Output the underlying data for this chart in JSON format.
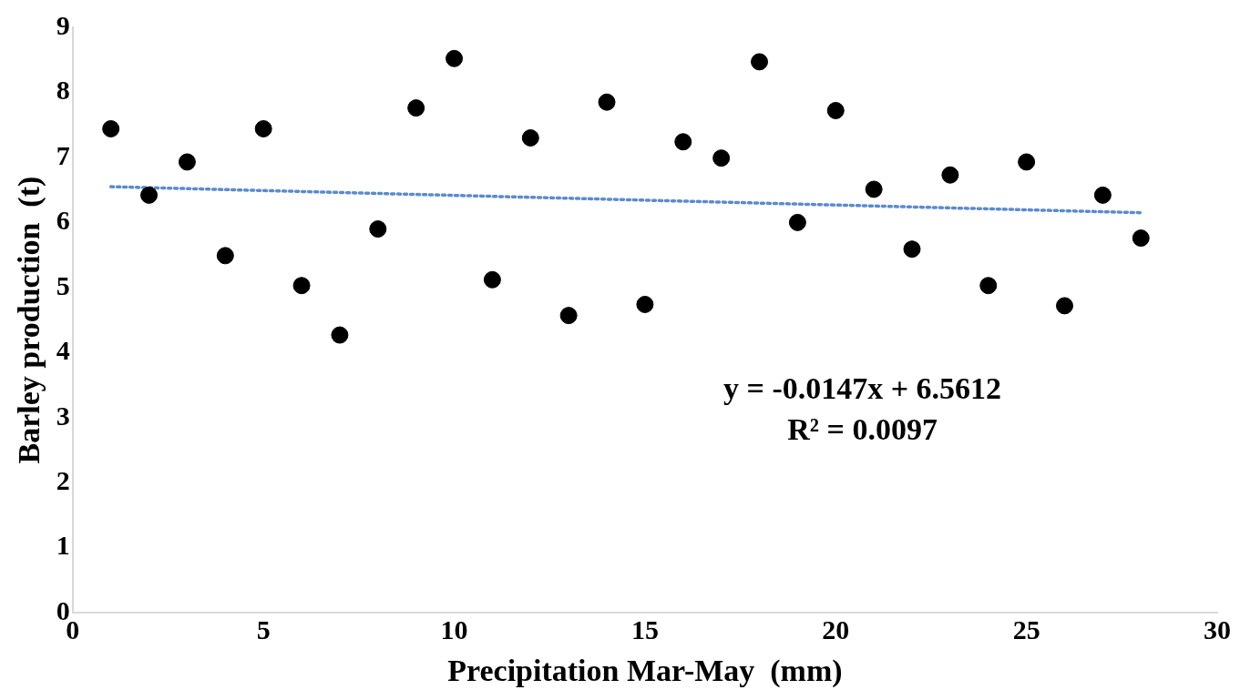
{
  "chart_data": {
    "type": "scatter",
    "xlabel": "Precipitation Mar-May  (mm)",
    "ylabel": "Barley production  (t)",
    "xlim": [
      0,
      30
    ],
    "xticks": [
      0,
      5,
      10,
      15,
      20,
      25,
      30
    ],
    "ylim": [
      0,
      9
    ],
    "yticks": [
      0,
      1,
      2,
      3,
      4,
      5,
      6,
      7,
      8,
      9
    ],
    "grid": false,
    "legend": false,
    "annotations": [
      "y = -0.0147x + 6.5612",
      "R² = 0.0097"
    ],
    "series": [
      {
        "marker": "circle",
        "color": "#000000",
        "x": [
          1,
          2,
          3,
          4,
          5,
          6,
          7,
          8,
          9,
          10,
          11,
          12,
          13,
          14,
          15,
          16,
          17,
          18,
          19,
          20,
          21,
          22,
          23,
          24,
          25,
          26,
          27,
          28
        ],
        "values": [
          7.44,
          6.42,
          6.93,
          5.49,
          7.44,
          5.03,
          4.27,
          5.9,
          7.76,
          8.52,
          5.12,
          7.3,
          4.57,
          7.85,
          4.74,
          7.24,
          6.99,
          8.47,
          6.0,
          7.72,
          6.51,
          5.59,
          6.73,
          5.03,
          6.93,
          4.72,
          6.42,
          5.76
        ]
      },
      {
        "type": "line",
        "marker": "none",
        "line_style": "dotted",
        "color": "#5b8bd0",
        "x": [
          1,
          28
        ],
        "values": [
          6.55,
          6.15
        ]
      }
    ]
  }
}
